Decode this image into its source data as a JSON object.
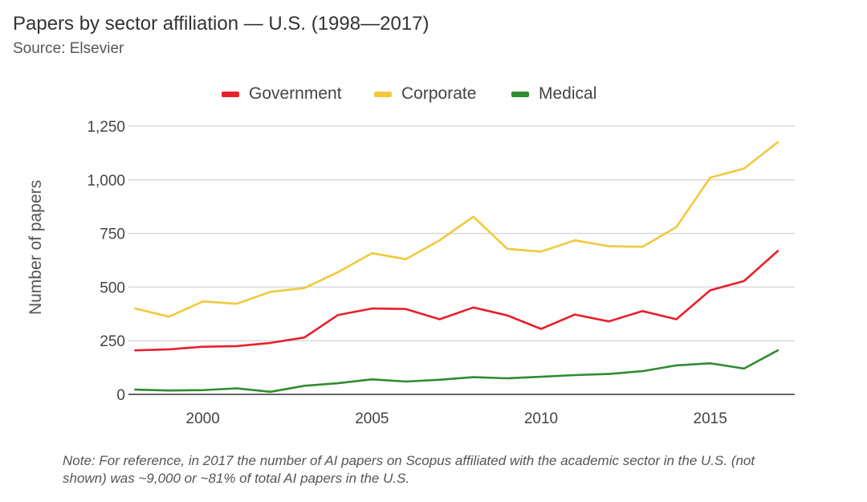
{
  "title": "Papers by sector affiliation — U.S. (1998—2017)",
  "subtitle": "Source: Elsevier",
  "note": "Note: For reference, in 2017 the number of AI papers on Scopus affiliated with the academic sector in the U.S. (not shown) was ~9,000 or ~81% of total AI papers in the U.S.",
  "chart_data": {
    "type": "line",
    "title": "Papers by sector affiliation — U.S. (1998—2017)",
    "ylabel": "Number of papers",
    "xlabel": "",
    "x": [
      1998,
      1999,
      2000,
      2001,
      2002,
      2003,
      2004,
      2005,
      2006,
      2007,
      2008,
      2009,
      2010,
      2011,
      2012,
      2013,
      2014,
      2015,
      2016,
      2017
    ],
    "xticks": [
      2000,
      2005,
      2010,
      2015
    ],
    "xtick_labels": [
      "2000",
      "2005",
      "2010",
      "2015"
    ],
    "xlim": [
      1997.8,
      2017.5
    ],
    "ylim": [
      0,
      1250
    ],
    "yticks": [
      0,
      250,
      500,
      750,
      1000,
      1250
    ],
    "ytick_labels": [
      "0",
      "250",
      "500",
      "750",
      "1,000",
      "1,250"
    ],
    "grid": true,
    "legend_position": "top",
    "series": [
      {
        "name": "Government",
        "color": "#e8202a",
        "values": [
          205,
          210,
          222,
          225,
          240,
          265,
          370,
          400,
          398,
          350,
          405,
          368,
          305,
          372,
          340,
          388,
          350,
          485,
          528,
          668
        ]
      },
      {
        "name": "Corporate",
        "color": "#f1c93b",
        "values": [
          400,
          362,
          433,
          422,
          478,
          495,
          570,
          658,
          630,
          718,
          828,
          678,
          665,
          718,
          690,
          688,
          780,
          1010,
          1052,
          1175
        ]
      },
      {
        "name": "Medical",
        "color": "#2f8c2f",
        "values": [
          22,
          18,
          20,
          28,
          12,
          40,
          52,
          70,
          60,
          68,
          80,
          75,
          82,
          90,
          95,
          108,
          135,
          145,
          120,
          205
        ]
      }
    ]
  }
}
